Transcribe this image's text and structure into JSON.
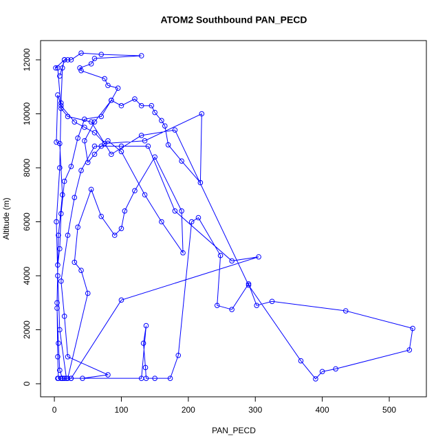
{
  "chart_data": {
    "type": "line",
    "title": "ATOM2 Southbound PAN_PECD",
    "x_label": "PAN_PECD",
    "y_label": "Altitude (m)",
    "color": "#0000ff",
    "markers": true,
    "x": [
      5,
      10,
      15,
      18,
      8,
      5,
      3,
      8,
      10,
      12,
      15,
      20,
      25,
      40,
      70,
      130,
      60,
      55,
      38,
      40,
      75,
      80,
      95,
      85,
      100,
      120,
      130,
      145,
      150,
      160,
      165,
      170,
      190,
      218,
      220,
      135,
      75,
      60,
      45,
      30,
      10,
      5,
      3,
      8,
      12,
      6,
      4,
      5,
      6,
      12,
      20,
      50,
      40,
      30,
      35,
      55,
      70,
      90,
      100,
      105,
      120,
      150,
      190,
      192,
      160,
      135,
      100,
      80,
      70,
      60,
      50,
      45,
      60,
      85,
      70,
      45,
      35,
      25,
      15,
      10,
      8,
      5,
      4,
      6,
      8,
      12,
      25,
      42,
      80,
      20,
      15,
      10,
      20,
      30,
      40,
      60,
      100,
      140,
      180,
      265,
      305,
      100,
      25,
      130,
      137,
      133,
      136,
      137,
      150,
      173,
      185,
      205,
      215,
      248,
      243,
      265,
      290,
      302,
      325,
      435,
      535,
      530,
      420,
      400,
      390,
      368,
      290,
      180,
      130,
      85,
      75,
      55,
      20,
      10,
      5,
      2,
      15,
      8
    ],
    "values": [
      200,
      200,
      200,
      200,
      2000,
      4000,
      6000,
      8000,
      10400,
      11700,
      12000,
      12000,
      12000,
      12250,
      12200,
      12150,
      12050,
      11850,
      11700,
      11600,
      11300,
      11050,
      10950,
      10500,
      10300,
      10550,
      10300,
      10300,
      10050,
      9750,
      9550,
      8850,
      8250,
      7450,
      10000,
      9000,
      8900,
      9300,
      9500,
      9700,
      10300,
      10700,
      8950,
      8900,
      7000,
      5500,
      3000,
      1000,
      200,
      200,
      200,
      3350,
      4200,
      4500,
      5800,
      7200,
      6200,
      5500,
      5750,
      6400,
      7150,
      8400,
      6400,
      4850,
      6000,
      7000,
      8600,
      9000,
      8800,
      8500,
      8200,
      9000,
      9700,
      10500,
      9900,
      9800,
      9100,
      8050,
      7500,
      6300,
      5000,
      4400,
      2800,
      1500,
      500,
      200,
      200,
      200,
      330,
      1000,
      2500,
      3800,
      5500,
      6900,
      7900,
      8800,
      8800,
      8800,
      6400,
      4550,
      4700,
      3100,
      200,
      200,
      2150,
      1500,
      600,
      200,
      200,
      200,
      1050,
      6000,
      6150,
      4750,
      2900,
      2750,
      3700,
      2900,
      3050,
      2700,
      2050,
      1250,
      550,
      450,
      180,
      850,
      3650,
      9400,
      9200,
      8500,
      8900,
      9700,
      9900,
      10200,
      11700,
      11700,
      12000,
      11400
    ],
    "xlim": [
      -20.6,
      555.4
    ],
    "ylim": [
      -484,
      12713
    ],
    "xticks": [
      0,
      100,
      200,
      300,
      400,
      500
    ],
    "yticks": [
      0,
      2000,
      4000,
      6000,
      8000,
      10000,
      12000
    ]
  }
}
